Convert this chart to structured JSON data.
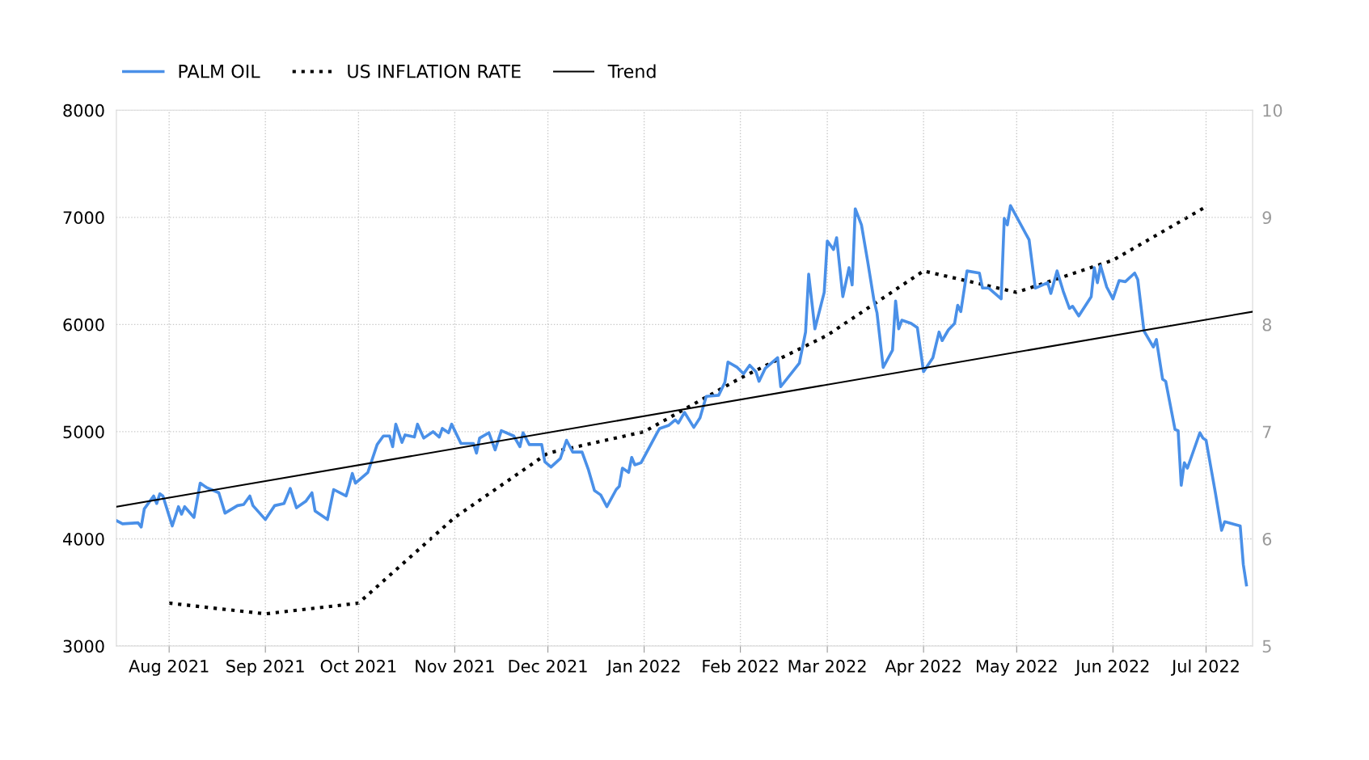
{
  "chart_data": {
    "type": "line",
    "xlim": [
      "2021-07-15",
      "2022-07-16"
    ],
    "xticks": [
      {
        "value": "2021-08-01",
        "label": "Aug 2021"
      },
      {
        "value": "2021-09-01",
        "label": "Sep 2021"
      },
      {
        "value": "2021-10-01",
        "label": "Oct 2021"
      },
      {
        "value": "2021-11-01",
        "label": "Nov 2021"
      },
      {
        "value": "2021-12-01",
        "label": "Dec 2021"
      },
      {
        "value": "2022-01-01",
        "label": "Jan 2022"
      },
      {
        "value": "2022-02-01",
        "label": "Feb 2022"
      },
      {
        "value": "2022-03-01",
        "label": "Mar 2022"
      },
      {
        "value": "2022-04-01",
        "label": "Apr 2022"
      },
      {
        "value": "2022-05-01",
        "label": "May 2022"
      },
      {
        "value": "2022-06-01",
        "label": "Jun 2022"
      },
      {
        "value": "2022-07-01",
        "label": "Jul 2022"
      }
    ],
    "ylim": [
      3000,
      8000
    ],
    "yticks": [
      3000,
      4000,
      5000,
      6000,
      7000,
      8000
    ],
    "y2lim": [
      5,
      10
    ],
    "y2ticks": [
      5,
      6,
      7,
      8,
      9,
      10
    ],
    "grid": true,
    "legend": "top left",
    "series": [
      {
        "name": "PALM OIL",
        "color": "#4a90e8",
        "line_style": "solid",
        "x": [
          "2021-07-15",
          "2021-07-17",
          "2021-07-22",
          "2021-07-23",
          "2021-07-24",
          "2021-07-27",
          "2021-07-28",
          "2021-07-29",
          "2021-07-30",
          "2021-08-02",
          "2021-08-04",
          "2021-08-05",
          "2021-08-06",
          "2021-08-09",
          "2021-08-11",
          "2021-08-13",
          "2021-08-17",
          "2021-08-19",
          "2021-08-23",
          "2021-08-25",
          "2021-08-27",
          "2021-08-28",
          "2021-09-01",
          "2021-09-04",
          "2021-09-07",
          "2021-09-09",
          "2021-09-11",
          "2021-09-14",
          "2021-09-16",
          "2021-09-17",
          "2021-09-21",
          "2021-09-23",
          "2021-09-27",
          "2021-09-28",
          "2021-09-29",
          "2021-09-30",
          "2021-10-04",
          "2021-10-07",
          "2021-10-09",
          "2021-10-11",
          "2021-10-12",
          "2021-10-13",
          "2021-10-15",
          "2021-10-16",
          "2021-10-19",
          "2021-10-20",
          "2021-10-22",
          "2021-10-25",
          "2021-10-27",
          "2021-10-28",
          "2021-10-30",
          "2021-10-31",
          "2021-11-03",
          "2021-11-07",
          "2021-11-08",
          "2021-11-09",
          "2021-11-12",
          "2021-11-14",
          "2021-11-16",
          "2021-11-20",
          "2021-11-22",
          "2021-11-23",
          "2021-11-25",
          "2021-11-29",
          "2021-11-30",
          "2021-12-02",
          "2021-12-05",
          "2021-12-07",
          "2021-12-09",
          "2021-12-12",
          "2021-12-14",
          "2021-12-16",
          "2021-12-18",
          "2021-12-20",
          "2021-12-23",
          "2021-12-24",
          "2021-12-25",
          "2021-12-27",
          "2021-12-28",
          "2021-12-29",
          "2021-12-31",
          "2022-01-05",
          "2022-01-06",
          "2022-01-09",
          "2022-01-11",
          "2022-01-12",
          "2022-01-14",
          "2022-01-17",
          "2022-01-19",
          "2022-01-20",
          "2022-01-21",
          "2022-01-25",
          "2022-01-27",
          "2022-01-28",
          "2022-01-31",
          "2022-02-02",
          "2022-02-04",
          "2022-02-06",
          "2022-02-07",
          "2022-02-09",
          "2022-02-13",
          "2022-02-14",
          "2022-02-20",
          "2022-02-22",
          "2022-02-23",
          "2022-02-25",
          "2022-02-28",
          "2022-03-01",
          "2022-03-03",
          "2022-03-04",
          "2022-03-06",
          "2022-03-08",
          "2022-03-09",
          "2022-03-10",
          "2022-03-12",
          "2022-03-14",
          "2022-03-16",
          "2022-03-17",
          "2022-03-19",
          "2022-03-22",
          "2022-03-23",
          "2022-03-24",
          "2022-03-25",
          "2022-03-28",
          "2022-03-30",
          "2022-04-01",
          "2022-04-04",
          "2022-04-06",
          "2022-04-07",
          "2022-04-09",
          "2022-04-11",
          "2022-04-12",
          "2022-04-13",
          "2022-04-15",
          "2022-04-19",
          "2022-04-20",
          "2022-04-22",
          "2022-04-26",
          "2022-04-27",
          "2022-04-28",
          "2022-04-29",
          "2022-05-05",
          "2022-05-07",
          "2022-05-11",
          "2022-05-12",
          "2022-05-14",
          "2022-05-16",
          "2022-05-18",
          "2022-05-19",
          "2022-05-21",
          "2022-05-25",
          "2022-05-26",
          "2022-05-27",
          "2022-05-28",
          "2022-05-30",
          "2022-06-01",
          "2022-06-03",
          "2022-06-05",
          "2022-06-08",
          "2022-06-09",
          "2022-06-11",
          "2022-06-14",
          "2022-06-15",
          "2022-06-17",
          "2022-06-18",
          "2022-06-21",
          "2022-06-22",
          "2022-06-23",
          "2022-06-24",
          "2022-06-25",
          "2022-06-29",
          "2022-06-30",
          "2022-07-01",
          "2022-07-04",
          "2022-07-06",
          "2022-07-07",
          "2022-07-12",
          "2022-07-13",
          "2022-07-14"
        ],
        "values": [
          4170,
          4140,
          4150,
          4110,
          4280,
          4400,
          4330,
          4420,
          4400,
          4120,
          4300,
          4230,
          4300,
          4200,
          4520,
          4480,
          4430,
          4240,
          4310,
          4320,
          4400,
          4310,
          4180,
          4310,
          4330,
          4470,
          4290,
          4350,
          4430,
          4260,
          4180,
          4460,
          4400,
          4500,
          4610,
          4520,
          4620,
          4880,
          4960,
          4960,
          4860,
          5070,
          4900,
          4970,
          4950,
          5070,
          4940,
          5000,
          4950,
          5030,
          4990,
          5070,
          4890,
          4890,
          4800,
          4940,
          4990,
          4830,
          5010,
          4960,
          4860,
          4990,
          4880,
          4880,
          4720,
          4670,
          4750,
          4920,
          4810,
          4810,
          4650,
          4450,
          4410,
          4300,
          4460,
          4490,
          4660,
          4620,
          4760,
          4690,
          4710,
          4980,
          5030,
          5060,
          5110,
          5080,
          5180,
          5040,
          5130,
          5230,
          5330,
          5340,
          5460,
          5650,
          5600,
          5540,
          5620,
          5560,
          5470,
          5590,
          5690,
          5420,
          5640,
          5930,
          6470,
          5960,
          6300,
          6780,
          6700,
          6810,
          6260,
          6530,
          6370,
          7080,
          6930,
          6590,
          6230,
          6110,
          5600,
          5760,
          6220,
          5960,
          6040,
          6010,
          5970,
          5560,
          5690,
          5930,
          5850,
          5950,
          6010,
          6180,
          6120,
          6500,
          6480,
          6340,
          6340,
          6240,
          6990,
          6930,
          7110,
          6790,
          6340,
          6390,
          6290,
          6500,
          6310,
          6150,
          6170,
          6080,
          6260,
          6530,
          6390,
          6550,
          6350,
          6240,
          6410,
          6400,
          6480,
          6420,
          5940,
          5790,
          5860,
          5490,
          5470,
          5020,
          5010,
          4500,
          4710,
          4660,
          4990,
          4940,
          4920,
          4430,
          4080,
          4160,
          4120,
          3760,
          3570
        ]
      },
      {
        "name": "US INFLATION RATE",
        "color": "#000000",
        "line_style": "dotted",
        "axis": "y2",
        "x": [
          "2021-08-01",
          "2021-09-01",
          "2021-10-01",
          "2021-11-01",
          "2021-12-01",
          "2022-01-01",
          "2022-02-01",
          "2022-03-01",
          "2022-04-01",
          "2022-05-01",
          "2022-06-01",
          "2022-07-01"
        ],
        "values": [
          5.4,
          5.3,
          5.4,
          6.2,
          6.8,
          7.0,
          7.5,
          7.9,
          8.5,
          8.3,
          8.6,
          9.1
        ]
      },
      {
        "name": "Trend",
        "color": "#000000",
        "line_style": "solid",
        "x": [
          "2021-07-15",
          "2022-07-16"
        ],
        "values": [
          4300,
          6120
        ]
      }
    ]
  }
}
